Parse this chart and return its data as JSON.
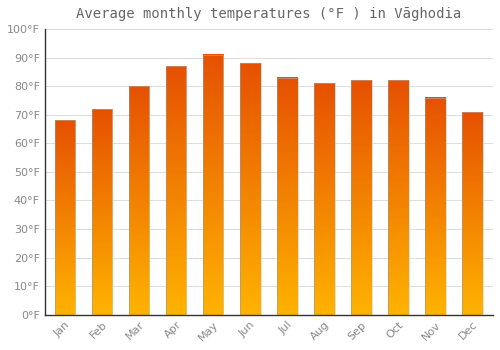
{
  "title": "Average monthly temperatures (°F ) in Vāghodia",
  "months": [
    "Jan",
    "Feb",
    "Mar",
    "Apr",
    "May",
    "Jun",
    "Jul",
    "Aug",
    "Sep",
    "Oct",
    "Nov",
    "Dec"
  ],
  "values": [
    68,
    72,
    80,
    87,
    91,
    88,
    83,
    81,
    82,
    82,
    76,
    71
  ],
  "bar_color_bottom": "#FFB300",
  "bar_color_top": "#E65100",
  "background_color": "#FFFFFF",
  "grid_color": "#DDDDDD",
  "title_color": "#666666",
  "label_color": "#888888",
  "spine_color": "#333333",
  "ylim": [
    0,
    100
  ],
  "yticks": [
    0,
    10,
    20,
    30,
    40,
    50,
    60,
    70,
    80,
    90,
    100
  ],
  "ytick_labels": [
    "0°F",
    "10°F",
    "20°F",
    "30°F",
    "40°F",
    "50°F",
    "60°F",
    "70°F",
    "80°F",
    "90°F",
    "100°F"
  ],
  "title_fontsize": 10,
  "tick_fontsize": 8,
  "bar_width": 0.55,
  "figsize": [
    5.0,
    3.5
  ],
  "dpi": 100
}
